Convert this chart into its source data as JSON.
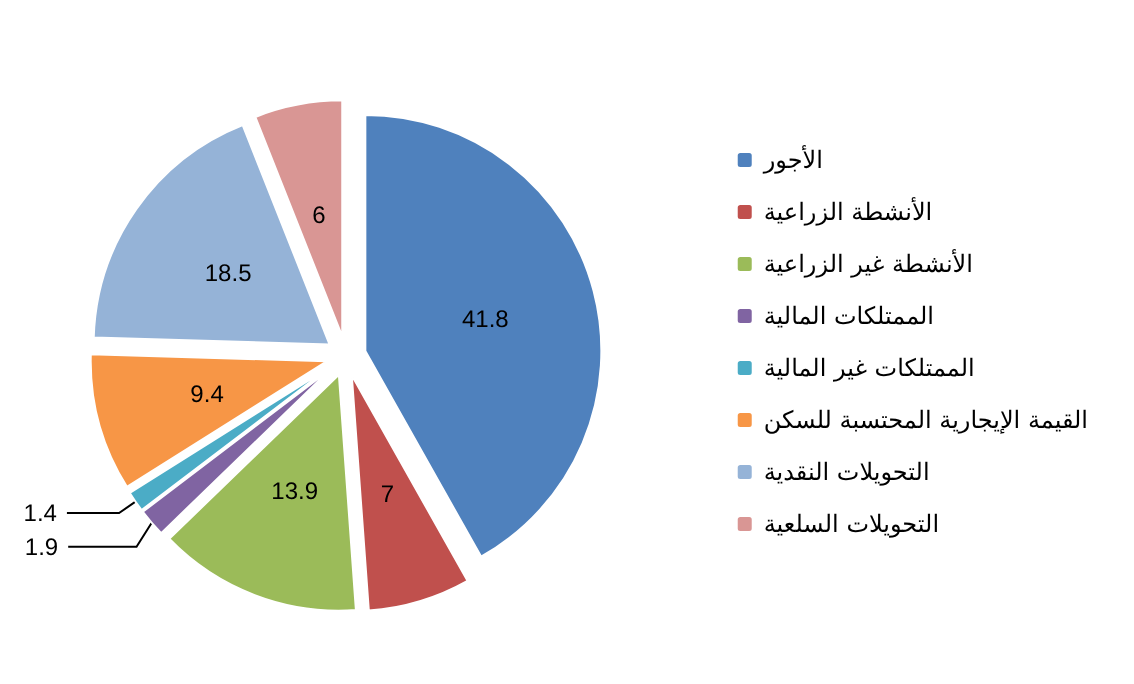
{
  "chart_data": {
    "type": "pie",
    "categories": [
      "الأجور",
      "الأنشطة الزراعية",
      "الأنشطة غير الزراعية",
      "الممتلكات المالية",
      "الممتلكات غير المالية",
      "القيمة الإيجارية المحتسبة للسكن",
      "التحويلات النقدية",
      "التحويلات السلعية"
    ],
    "values": [
      41.8,
      7,
      13.9,
      1.9,
      1.4,
      9.4,
      18.5,
      6
    ],
    "colors": [
      "#4f81bd",
      "#c0504d",
      "#9bbb59",
      "#8064a2",
      "#4bacc6",
      "#f79646",
      "#95b3d7",
      "#d99694"
    ],
    "data_labels": true,
    "legend": "right"
  }
}
